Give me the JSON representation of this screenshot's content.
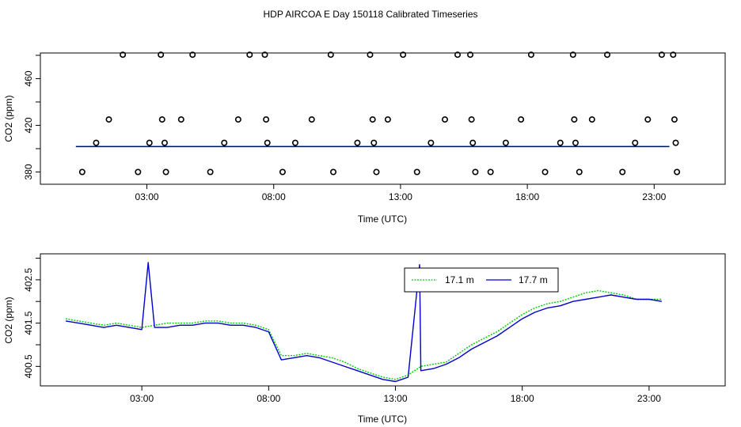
{
  "title": "HDP AIRCOA E  Day 150118  Calibrated Timeseries",
  "colors": {
    "line_17_1": "#00cc00",
    "line_17_7": "#0000cc",
    "points": "#000000",
    "axes": "#000000"
  },
  "chart_data": [
    {
      "type": "scatter",
      "xlabel": "Time (UTC)",
      "ylabel": "CO2 (ppm)",
      "x_unit": "hours UTC",
      "xlim": [
        -1.2,
        25.8
      ],
      "ylim": [
        369.5,
        482
      ],
      "x_ticks": [
        3,
        8,
        13,
        18,
        23
      ],
      "x_tick_labels": [
        "03:00",
        "08:00",
        "13:00",
        "18:00",
        "23:00"
      ],
      "y_ticks": [
        380,
        420,
        460
      ],
      "y_tick_labels": [
        "380",
        "420",
        "460"
      ],
      "grid": false,
      "points": {
        "x": [
          0.45,
          1.0,
          1.5,
          2.05,
          2.65,
          3.1,
          3.55,
          3.6,
          3.7,
          3.75,
          4.35,
          4.8,
          5.5,
          6.05,
          6.6,
          7.05,
          7.65,
          7.7,
          7.75,
          8.35,
          8.85,
          9.5,
          10.25,
          10.35,
          11.3,
          11.8,
          11.9,
          11.95,
          12.05,
          12.5,
          13.1,
          13.65,
          14.2,
          14.75,
          15.25,
          15.75,
          15.8,
          15.85,
          15.95,
          16.55,
          17.15,
          17.75,
          18.15,
          18.7,
          19.3,
          19.8,
          19.85,
          19.9,
          20.05,
          20.55,
          21.15,
          21.75,
          22.25,
          22.75,
          23.3,
          23.75,
          23.8,
          23.85,
          23.9
        ],
        "y": [
          380,
          405,
          425,
          485,
          380,
          405,
          485,
          425,
          405,
          380,
          425,
          485,
          380,
          405,
          425,
          485,
          485,
          425,
          405,
          380,
          405,
          425,
          485,
          380,
          405,
          485,
          425,
          405,
          380,
          425,
          485,
          380,
          405,
          425,
          485,
          485,
          425,
          405,
          380,
          380,
          405,
          425,
          485,
          380,
          405,
          485,
          425,
          405,
          380,
          425,
          485,
          380,
          405,
          425,
          485,
          485,
          425,
          405,
          380
        ]
      },
      "series": [
        {
          "name": "17.1 m",
          "color": "#00cc00",
          "constant": 401.9,
          "x_range": [
            0.2,
            23.6
          ]
        },
        {
          "name": "17.7 m",
          "color": "#0000cc",
          "constant": 401.8,
          "x_range": [
            0.2,
            23.6
          ]
        }
      ]
    },
    {
      "type": "line",
      "xlabel": "Time (UTC)",
      "ylabel": "CO2 (ppm)",
      "x_unit": "hours UTC",
      "xlim": [
        -1.0,
        26.0
      ],
      "ylim": [
        400.05,
        403.1
      ],
      "x_ticks": [
        3,
        8,
        13,
        18,
        23
      ],
      "x_tick_labels": [
        "03:00",
        "08:00",
        "13:00",
        "18:00",
        "23:00"
      ],
      "y_ticks": [
        400.5,
        401.5,
        402.5
      ],
      "y_tick_labels": [
        "400.5",
        "401.5",
        "402.5"
      ],
      "grid": false,
      "legend": {
        "position": "top-center"
      },
      "series": [
        {
          "name": "17.1 m",
          "color": "#00cc00",
          "x": [
            0.0,
            0.5,
            1.0,
            1.5,
            2.0,
            2.5,
            3.0,
            3.5,
            4.0,
            4.5,
            5.0,
            5.5,
            6.0,
            6.5,
            7.0,
            7.5,
            8.0,
            8.5,
            9.0,
            9.5,
            10.0,
            10.5,
            11.0,
            11.5,
            12.0,
            12.5,
            13.0,
            13.5,
            14.0,
            14.5,
            15.0,
            15.5,
            16.0,
            16.5,
            17.0,
            17.5,
            18.0,
            18.5,
            19.0,
            19.5,
            20.0,
            20.5,
            21.0,
            21.5,
            22.0,
            22.5,
            23.0,
            23.5
          ],
          "y": [
            401.6,
            401.55,
            401.5,
            401.45,
            401.5,
            401.45,
            401.4,
            401.45,
            401.5,
            401.5,
            401.5,
            401.55,
            401.55,
            401.5,
            401.5,
            401.45,
            401.35,
            400.75,
            400.75,
            400.8,
            400.75,
            400.7,
            400.6,
            400.45,
            400.35,
            400.25,
            400.2,
            400.3,
            400.5,
            400.55,
            400.6,
            400.8,
            401.0,
            401.15,
            401.3,
            401.5,
            401.7,
            401.85,
            401.95,
            402.0,
            402.1,
            402.2,
            402.25,
            402.2,
            402.15,
            402.05,
            402.05,
            402.05
          ]
        },
        {
          "name": "17.7 m",
          "color": "#0000cc",
          "x": [
            0.0,
            0.5,
            1.0,
            1.5,
            2.0,
            2.5,
            3.0,
            3.25,
            3.5,
            4.0,
            4.5,
            5.0,
            5.5,
            6.0,
            6.5,
            7.0,
            7.5,
            8.0,
            8.5,
            9.0,
            9.5,
            10.0,
            10.5,
            11.0,
            11.5,
            12.0,
            12.5,
            13.0,
            13.5,
            13.95,
            14.0,
            14.5,
            15.0,
            15.5,
            16.0,
            16.5,
            17.0,
            17.5,
            18.0,
            18.5,
            19.0,
            19.5,
            20.0,
            20.5,
            21.0,
            21.5,
            22.0,
            22.5,
            23.0,
            23.5
          ],
          "y": [
            401.55,
            401.5,
            401.45,
            401.4,
            401.45,
            401.4,
            401.35,
            402.9,
            401.4,
            401.4,
            401.45,
            401.45,
            401.5,
            401.5,
            401.45,
            401.45,
            401.4,
            401.3,
            400.65,
            400.7,
            400.75,
            400.7,
            400.6,
            400.5,
            400.4,
            400.3,
            400.2,
            400.15,
            400.25,
            402.85,
            400.4,
            400.45,
            400.55,
            400.7,
            400.9,
            401.05,
            401.2,
            401.4,
            401.6,
            401.75,
            401.85,
            401.9,
            402.0,
            402.05,
            402.1,
            402.15,
            402.1,
            402.05,
            402.05,
            402.0
          ]
        }
      ]
    }
  ]
}
